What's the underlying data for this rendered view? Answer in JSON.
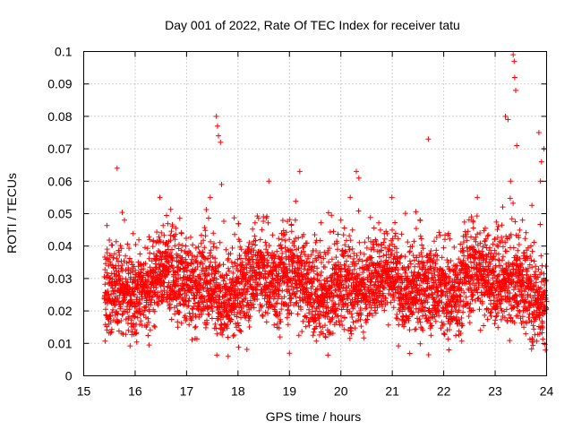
{
  "chart_data": {
    "type": "scatter",
    "title": "Day 001 of 2022, Rate Of TEC Index for receiver tatu",
    "xlabel": "GPS time / hours",
    "ylabel": "ROTI / TECUs",
    "xlim": [
      15,
      24
    ],
    "ylim": [
      0,
      0.1
    ],
    "xticks": [
      "15",
      "16",
      "17",
      "18",
      "19",
      "20",
      "21",
      "22",
      "23",
      "24"
    ],
    "yticks": [
      "0",
      "0.01",
      "0.02",
      "0.03",
      "0.04",
      "0.05",
      "0.06",
      "0.07",
      "0.08",
      "0.09",
      "0.1"
    ],
    "grid": true,
    "marker": "+",
    "color": "#ff0000",
    "series": [
      {
        "name": "ROTI",
        "x_range": [
          15.4,
          24.0
        ],
        "baseline_mean": 0.028,
        "baseline_spread": [
          0.006,
          0.05
        ],
        "outliers": [
          {
            "x": 15.65,
            "y": 0.064
          },
          {
            "x": 17.58,
            "y": 0.08
          },
          {
            "x": 17.6,
            "y": 0.077
          },
          {
            "x": 17.62,
            "y": 0.074
          },
          {
            "x": 17.66,
            "y": 0.072
          },
          {
            "x": 17.68,
            "y": 0.059
          },
          {
            "x": 18.6,
            "y": 0.06
          },
          {
            "x": 19.2,
            "y": 0.063
          },
          {
            "x": 20.3,
            "y": 0.063
          },
          {
            "x": 20.35,
            "y": 0.061
          },
          {
            "x": 21.7,
            "y": 0.073
          },
          {
            "x": 23.2,
            "y": 0.08
          },
          {
            "x": 23.25,
            "y": 0.079
          },
          {
            "x": 23.3,
            "y": 0.06
          },
          {
            "x": 23.35,
            "y": 0.099
          },
          {
            "x": 23.37,
            "y": 0.097
          },
          {
            "x": 23.38,
            "y": 0.092
          },
          {
            "x": 23.4,
            "y": 0.088
          },
          {
            "x": 23.42,
            "y": 0.071
          },
          {
            "x": 23.85,
            "y": 0.075
          },
          {
            "x": 23.9,
            "y": 0.066
          },
          {
            "x": 23.95,
            "y": 0.07
          },
          {
            "x": 23.88,
            "y": 0.06
          },
          {
            "x": 19.0,
            "y": 0.007
          },
          {
            "x": 22.1,
            "y": 0.008
          }
        ]
      }
    ]
  }
}
